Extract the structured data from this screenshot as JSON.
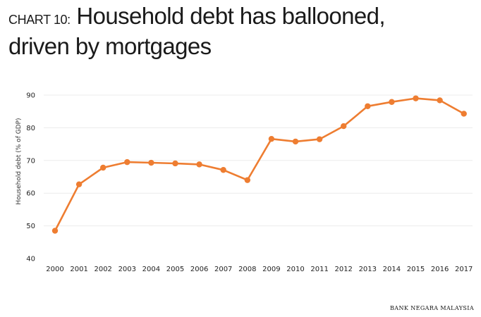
{
  "header": {
    "prefix": "CHART 10:",
    "title_line1": "Household debt has ballooned,",
    "title_line2": "driven by mortgages"
  },
  "source": "BANK NEGARA MALAYSIA",
  "colors": {
    "line": "#ee7d31",
    "grid": "#ececec",
    "text": "#1a1a1a"
  },
  "chart_data": {
    "type": "line",
    "title": "Household debt has ballooned, driven by mortgages",
    "xlabel": "",
    "ylabel": "Household debt (% of GDP)",
    "ylim": [
      40,
      90
    ],
    "yticks": [
      40,
      50,
      60,
      70,
      80,
      90
    ],
    "grid": "horizontal",
    "categories": [
      "2000",
      "2001",
      "2002",
      "2003",
      "2004",
      "2005",
      "2006",
      "2007",
      "2008",
      "2009",
      "2010",
      "2011",
      "2012",
      "2013",
      "2014",
      "2015",
      "2016",
      "2017"
    ],
    "values": [
      48.5,
      62.7,
      67.8,
      69.5,
      69.3,
      69.1,
      68.8,
      67.1,
      64.0,
      76.6,
      75.8,
      76.5,
      80.5,
      86.6,
      87.9,
      89.0,
      88.4,
      84.3
    ]
  }
}
